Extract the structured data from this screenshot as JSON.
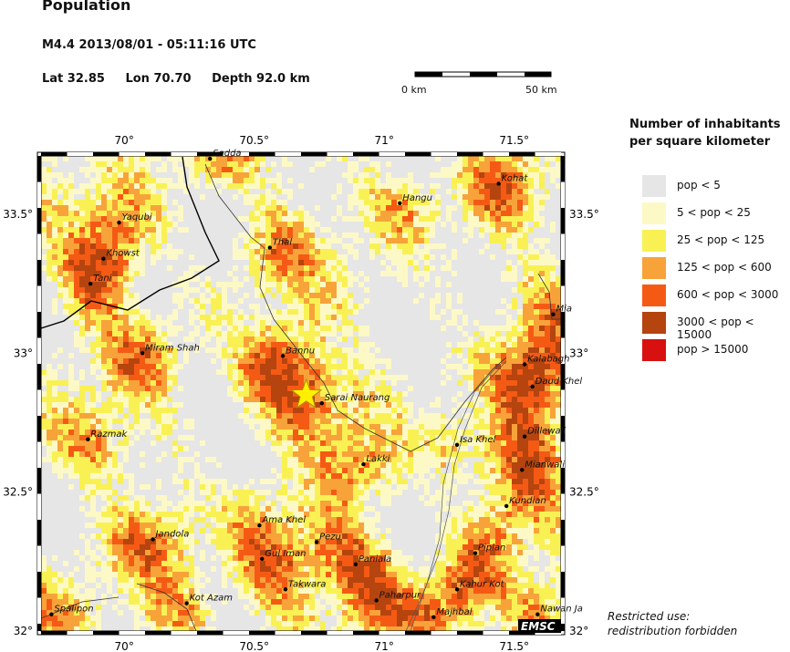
{
  "title": "Population",
  "event": "M4.4  2013/08/01 - 05:11:16 UTC",
  "location": {
    "lat": "Lat 32.85",
    "lon": "Lon 70.70",
    "depth": "Depth  92.0 km"
  },
  "scale_bar": {
    "start_label": "0 km",
    "end_label": "50 km"
  },
  "legend": {
    "title_line1": "Number of inhabitants",
    "title_line2": "per square kilometer",
    "items": [
      {
        "label": "pop < 5",
        "color": "#e6e6e6"
      },
      {
        "label": "5 < pop < 25",
        "color": "#fdf9c6"
      },
      {
        "label": "25 < pop < 125",
        "color": "#f9f154"
      },
      {
        "label": "125 < pop < 600",
        "color": "#f7a33a"
      },
      {
        "label": "600 < pop < 3000",
        "color": "#f55a15"
      },
      {
        "label": "3000 < pop < 15000",
        "color": "#b5440f"
      },
      {
        "label": "pop > 15000",
        "color": "#d81010"
      }
    ]
  },
  "axes": {
    "x_ticks": [
      "70°",
      "70.5°",
      "71°",
      "71.5°"
    ],
    "y_ticks_left": [
      "33.5°",
      "33°",
      "32.5°",
      "32°"
    ],
    "y_ticks_right": [
      "33.5°",
      "33°",
      "32.5°",
      "32°"
    ],
    "lon_range": [
      69.68,
      71.68
    ],
    "lat_range": [
      32.0,
      33.71
    ]
  },
  "epicenter": {
    "lon": 70.7,
    "lat": 32.85
  },
  "cities": [
    {
      "name": "Sadda",
      "lon": 70.33,
      "lat": 33.7
    },
    {
      "name": "Kohat",
      "lon": 71.44,
      "lat": 33.61
    },
    {
      "name": "Hangu",
      "lon": 71.06,
      "lat": 33.54
    },
    {
      "name": "Yaqubi",
      "lon": 69.98,
      "lat": 33.47
    },
    {
      "name": "Thal",
      "lon": 70.56,
      "lat": 33.38
    },
    {
      "name": "Khowst",
      "lon": 69.92,
      "lat": 33.34
    },
    {
      "name": "Tani",
      "lon": 69.87,
      "lat": 33.25
    },
    {
      "name": "Mia",
      "lon": 71.65,
      "lat": 33.14
    },
    {
      "name": "Miram Shah",
      "lon": 70.07,
      "lat": 33.0
    },
    {
      "name": "Bannu",
      "lon": 70.61,
      "lat": 32.99
    },
    {
      "name": "Kalabagh",
      "lon": 71.54,
      "lat": 32.96
    },
    {
      "name": "Daud Khel",
      "lon": 71.57,
      "lat": 32.88
    },
    {
      "name": "Sarai Naurang",
      "lon": 70.76,
      "lat": 32.82
    },
    {
      "name": "Dillewali",
      "lon": 71.54,
      "lat": 32.7
    },
    {
      "name": "Razmak",
      "lon": 69.86,
      "lat": 32.69
    },
    {
      "name": "Isa Khel",
      "lon": 71.28,
      "lat": 32.67
    },
    {
      "name": "Lakki",
      "lon": 70.92,
      "lat": 32.6
    },
    {
      "name": "Mianwali",
      "lon": 71.53,
      "lat": 32.58
    },
    {
      "name": "Kundian",
      "lon": 71.47,
      "lat": 32.45
    },
    {
      "name": "Ama Khel",
      "lon": 70.52,
      "lat": 32.38
    },
    {
      "name": "Jandola",
      "lon": 70.11,
      "lat": 32.33
    },
    {
      "name": "Pezu",
      "lon": 70.74,
      "lat": 32.32
    },
    {
      "name": "Piplan",
      "lon": 71.35,
      "lat": 32.28
    },
    {
      "name": "Gul Iman",
      "lon": 70.53,
      "lat": 32.26
    },
    {
      "name": "Paniala",
      "lon": 70.89,
      "lat": 32.24
    },
    {
      "name": "Kahur Kot",
      "lon": 71.28,
      "lat": 32.15
    },
    {
      "name": "Takwara",
      "lon": 70.62,
      "lat": 32.15
    },
    {
      "name": "Paharpur",
      "lon": 70.97,
      "lat": 32.11
    },
    {
      "name": "Kot Azam",
      "lon": 70.24,
      "lat": 32.1
    },
    {
      "name": "Spalipon",
      "lon": 69.72,
      "lat": 32.06
    },
    {
      "name": "Nawan Ja",
      "lon": 71.59,
      "lat": 32.06
    },
    {
      "name": "Majhbal",
      "lon": 71.19,
      "lat": 32.05
    }
  ],
  "attribution": "EMSC",
  "notice_line1": "Restricted use:",
  "notice_line2": "redistribution forbidden"
}
